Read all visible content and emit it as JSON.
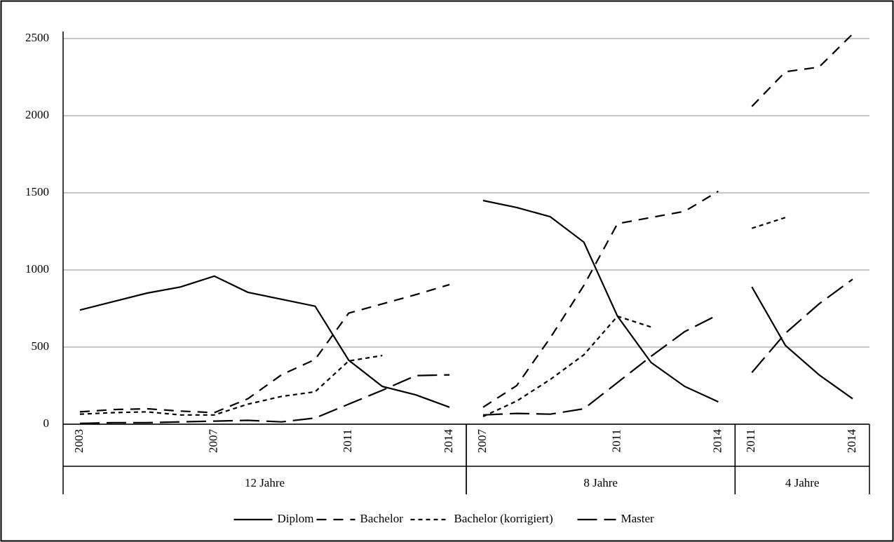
{
  "chart_data": {
    "type": "line",
    "groups": [
      {
        "label": "12 Jahre",
        "categories": [
          "2003",
          null,
          null,
          null,
          "2007",
          null,
          null,
          null,
          "2011",
          null,
          null,
          "2014"
        ]
      },
      {
        "label": "8 Jahre",
        "categories": [
          "2007",
          null,
          null,
          null,
          "2011",
          null,
          null,
          "2014"
        ]
      },
      {
        "label": "4 Jahre",
        "categories": [
          "2011",
          null,
          null,
          "2014"
        ]
      }
    ],
    "series": [
      {
        "name": "Diplom",
        "color": "#000000",
        "dash": "none",
        "values": [
          [
            740,
            795,
            850,
            890,
            960,
            855,
            810,
            765,
            415,
            245,
            190,
            110
          ],
          [
            1450,
            1405,
            1345,
            1180,
            700,
            400,
            245,
            145
          ],
          [
            890,
            510,
            320,
            165
          ]
        ]
      },
      {
        "name": "Bachelor",
        "color": "#000000",
        "dash": "14,10",
        "values": [
          [
            80,
            95,
            100,
            85,
            75,
            165,
            320,
            420,
            720,
            780,
            840,
            905
          ],
          [
            110,
            250,
            560,
            900,
            1300,
            1340,
            1380,
            1510
          ],
          [
            2060,
            2285,
            2315,
            2530
          ]
        ]
      },
      {
        "name": "Bachelor (korrigiert)",
        "color": "#000000",
        "dash": "6,5",
        "values": [
          [
            65,
            75,
            80,
            60,
            60,
            130,
            180,
            210,
            410,
            445,
            null,
            null
          ],
          [
            50,
            150,
            290,
            450,
            700,
            630,
            null,
            null
          ],
          [
            1270,
            1340,
            null,
            null
          ]
        ]
      },
      {
        "name": "Master",
        "color": "#000000",
        "dash": "28,10",
        "values": [
          [
            5,
            10,
            10,
            15,
            20,
            25,
            15,
            40,
            130,
            220,
            315,
            320
          ],
          [
            60,
            70,
            65,
            100,
            270,
            440,
            600,
            710
          ],
          [
            335,
            590,
            780,
            940
          ]
        ]
      }
    ],
    "ylim": [
      0,
      2500
    ],
    "yticks": [
      0,
      500,
      1000,
      1500,
      2000,
      2500
    ],
    "grid": true
  }
}
